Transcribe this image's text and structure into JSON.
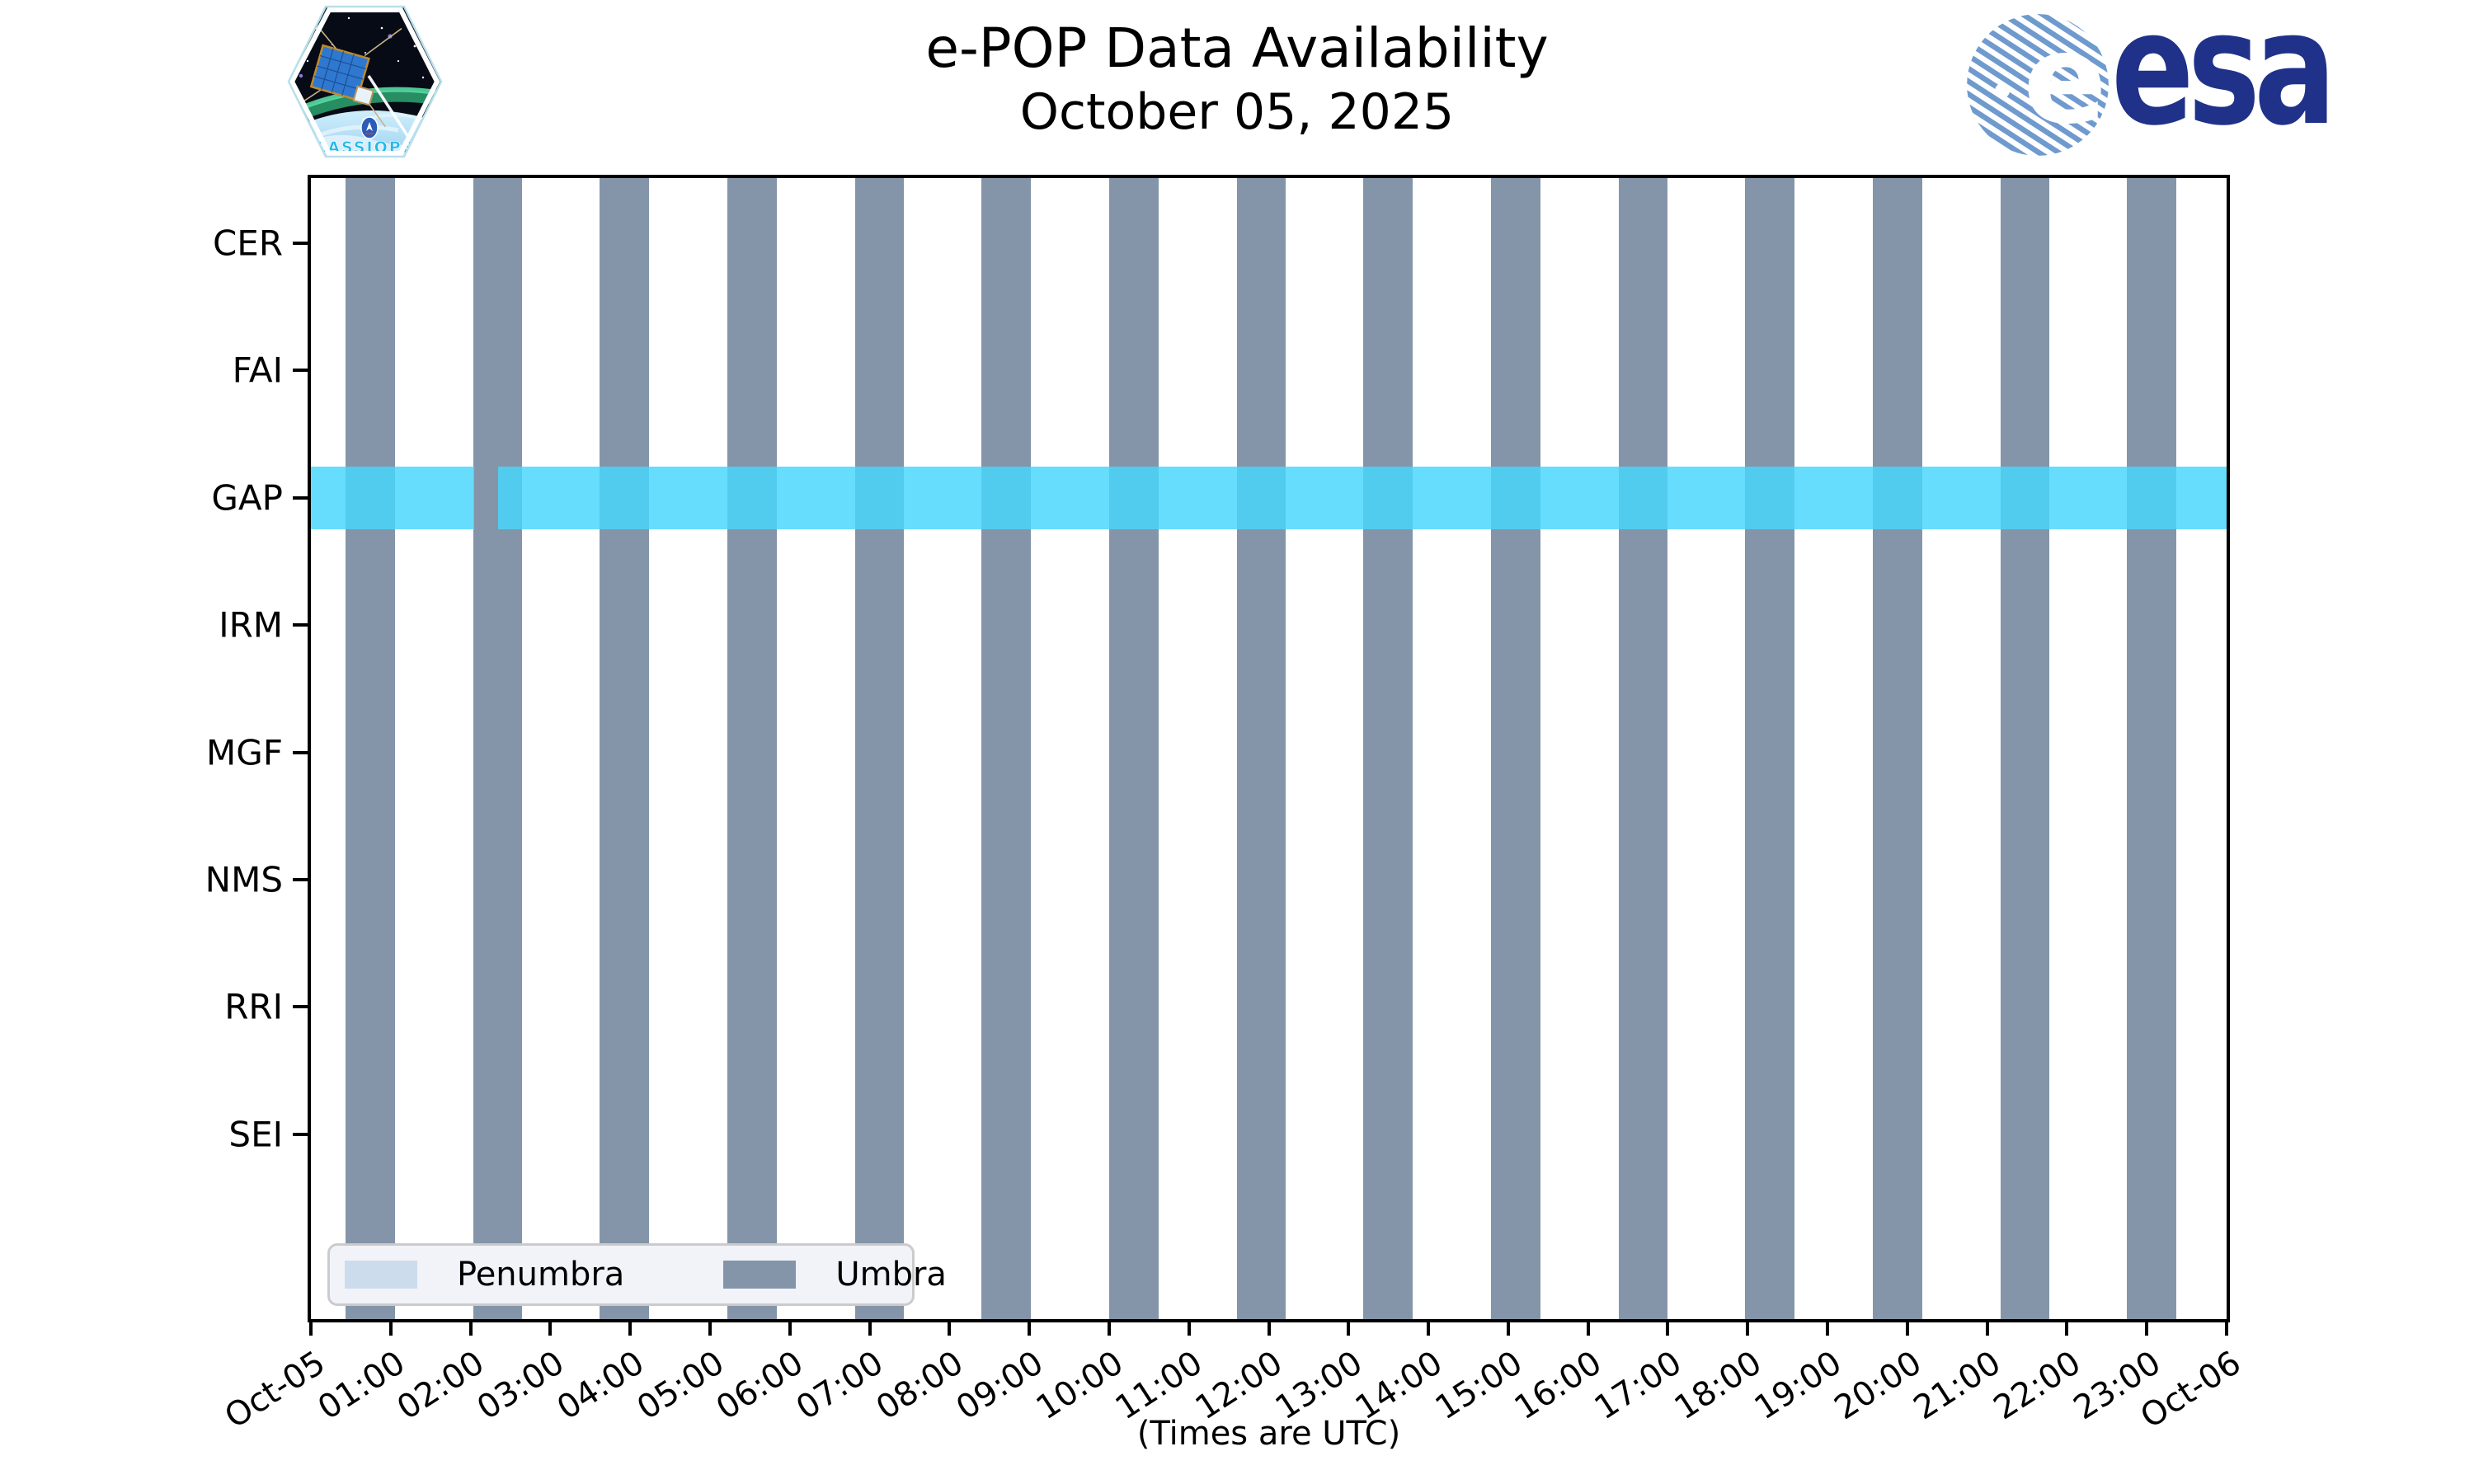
{
  "header": {
    "title": "e-POP Data Availability",
    "subtitle": "October 05, 2025"
  },
  "logos": {
    "cassiope_patch_label": "CASSIOPE",
    "esa_wordmark": "esa"
  },
  "chart_data": {
    "type": "bar",
    "subtype": "timeline-availability",
    "title": "e-POP Data Availability",
    "subtitle": "October 05, 2025",
    "xlabel": "(Times are UTC)",
    "x_axis": {
      "range_minutes": [
        0,
        1440
      ],
      "tick_interval_minutes": 60,
      "tick_labels": [
        "Oct-05",
        "01:00",
        "02:00",
        "03:00",
        "04:00",
        "05:00",
        "06:00",
        "07:00",
        "08:00",
        "09:00",
        "10:00",
        "11:00",
        "12:00",
        "13:00",
        "14:00",
        "15:00",
        "16:00",
        "17:00",
        "18:00",
        "19:00",
        "20:00",
        "21:00",
        "22:00",
        "23:00",
        "Oct-06"
      ]
    },
    "instruments": [
      "CER",
      "FAI",
      "GAP",
      "IRM",
      "MGF",
      "NMS",
      "RRI",
      "SEI"
    ],
    "umbra_intervals_min": [
      [
        26,
        63
      ],
      [
        122,
        159
      ],
      [
        217,
        254
      ],
      [
        313,
        350
      ],
      [
        409,
        446
      ],
      [
        504,
        541
      ],
      [
        600,
        637
      ],
      [
        696,
        733
      ],
      [
        791,
        828
      ],
      [
        887,
        924
      ],
      [
        983,
        1020
      ],
      [
        1078,
        1115
      ],
      [
        1174,
        1211
      ],
      [
        1270,
        1307
      ],
      [
        1365,
        1402
      ]
    ],
    "penumbra_intervals_min": [],
    "availability": [
      {
        "instrument": "CER",
        "segments_min": []
      },
      {
        "instrument": "FAI",
        "segments_min": []
      },
      {
        "instrument": "GAP",
        "segments_min": [
          [
            0,
            123
          ],
          [
            141,
            1440
          ]
        ]
      },
      {
        "instrument": "IRM",
        "segments_min": []
      },
      {
        "instrument": "MGF",
        "segments_min": []
      },
      {
        "instrument": "NMS",
        "segments_min": []
      },
      {
        "instrument": "RRI",
        "segments_min": []
      },
      {
        "instrument": "SEI",
        "segments_min": []
      }
    ],
    "colors": {
      "umbra": "#8495a9",
      "penumbra": "#ccdcec",
      "availability_bar": "rgba(73,215,252,0.84)",
      "axis": "#000000"
    },
    "grid": false
  },
  "legend": {
    "items": [
      {
        "label": "Penumbra",
        "color": "#ccdcec"
      },
      {
        "label": "Umbra",
        "color": "#8495a9"
      }
    ],
    "position": "lower-left"
  },
  "footer": {
    "caption": "(Times are UTC)"
  }
}
